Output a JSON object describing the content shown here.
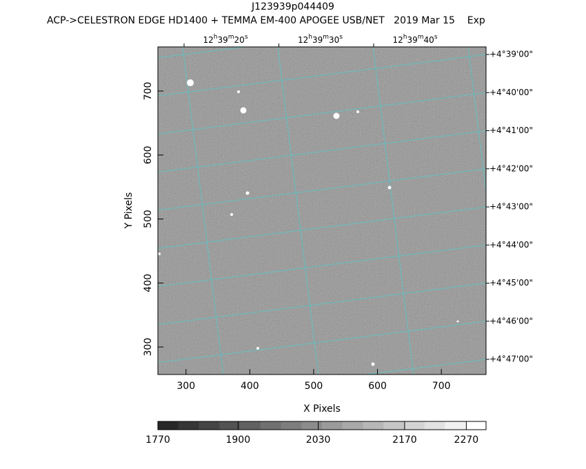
{
  "chart_data": {
    "type": "image",
    "title": "J123939p044409",
    "subtitle": "ACP->CELESTRON EDGE HD1400 + TEMMA EM-400 APOGEE USB/NET   2019 Mar 15    Exp",
    "x_label": "X Pixels",
    "y_label": "Y Pixels",
    "xlim": [
      256,
      770
    ],
    "ylim": [
      257,
      769
    ],
    "xticks": [
      300,
      400,
      500,
      600,
      700
    ],
    "yticks": [
      300,
      400,
      500,
      600,
      700
    ],
    "ra_labels": [
      "12h39m20s",
      "12h39m30s",
      "12h39m40s"
    ],
    "dec_labels": [
      "+4°39'00\"",
      "+4°40'00\"",
      "+4°41'00\"",
      "+4°42'00\"",
      "+4°43'00\"",
      "+4°44'00\"",
      "+4°45'00\"",
      "+4°46'00\"",
      "+4°47'00\""
    ],
    "colorbar": {
      "lim": [
        1770,
        2302
      ],
      "ticks": [
        1770,
        1900,
        2030,
        2170,
        2270
      ]
    }
  }
}
